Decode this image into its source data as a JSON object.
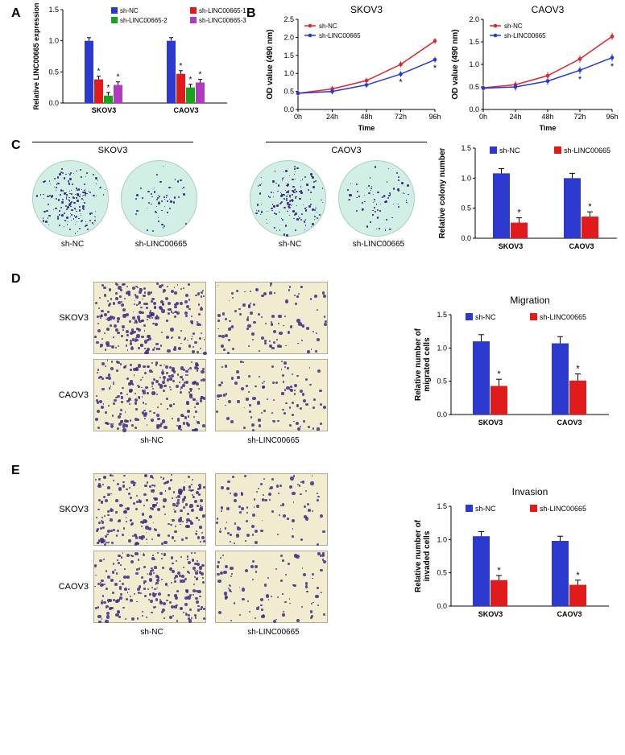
{
  "colors": {
    "blue": "#2b39ce",
    "red": "#e11b1b",
    "green": "#16a41a",
    "magenta": "#b03bc1",
    "line_red": "#e3222d",
    "line_blue": "#2539d6",
    "stain": "#3b2d86",
    "petri_bg": "#d2efe5",
    "micro_bg": "#f1ecd0"
  },
  "panelA": {
    "label": "A",
    "ylabel": "Relative LINC00665 expression",
    "ylim": [
      0,
      1.5
    ],
    "ytick_step": 0.5,
    "groups": [
      "SKOV3",
      "CAOV3"
    ],
    "legend": [
      {
        "key": "sh-NC",
        "color": "#2b39ce"
      },
      {
        "key": "sh-LINC00665-1",
        "color": "#e11b1b"
      },
      {
        "key": "sh-LINC00665-2",
        "color": "#16a41a"
      },
      {
        "key": "sh-LINC00665-3",
        "color": "#b03bc1"
      }
    ],
    "values": {
      "SKOV3": [
        1.0,
        0.38,
        0.12,
        0.29
      ],
      "CAOV3": [
        1.0,
        0.47,
        0.25,
        0.33
      ]
    },
    "err": 0.05
  },
  "panelB": {
    "label": "B",
    "charts": [
      {
        "title": "SKOV3",
        "ylabel": "OD value (490 nm)",
        "xlabel": "Time",
        "ylim": [
          0,
          2.5
        ],
        "yticks": [
          0,
          0.5,
          1.0,
          1.5,
          2.0,
          2.5
        ],
        "x": [
          "0h",
          "24h",
          "48h",
          "72h",
          "96h"
        ],
        "series": [
          {
            "name": "sh-NC",
            "color": "#e3222d",
            "y": [
              0.45,
              0.57,
              0.8,
              1.25,
              1.9
            ]
          },
          {
            "name": "sh-LINC00665",
            "color": "#2539d6",
            "y": [
              0.45,
              0.5,
              0.68,
              0.98,
              1.38
            ]
          }
        ]
      },
      {
        "title": "CAOV3",
        "ylabel": "OD value (490 nm)",
        "xlabel": "Time",
        "ylim": [
          0,
          2.0
        ],
        "yticks": [
          0,
          0.5,
          1.0,
          1.5,
          2.0
        ],
        "x": [
          "0h",
          "24h",
          "48h",
          "72h",
          "96h"
        ],
        "series": [
          {
            "name": "sh-NC",
            "color": "#e3222d",
            "y": [
              0.48,
              0.55,
              0.75,
              1.12,
              1.62
            ]
          },
          {
            "name": "sh-LINC00665",
            "color": "#2539d6",
            "y": [
              0.47,
              0.5,
              0.63,
              0.87,
              1.15
            ]
          }
        ]
      }
    ]
  },
  "panelC": {
    "label": "C",
    "lines": [
      "SKOV3",
      "CAOV3"
    ],
    "cols": [
      "sh-NC",
      "sh-LINC00665",
      "sh-NC",
      "sh-LINC00665"
    ],
    "bar": {
      "ylabel": "Relative colony number",
      "ylim": [
        0,
        1.5
      ],
      "ytick_step": 0.5,
      "groups": [
        "SKOV3",
        "CAOV3"
      ],
      "legend": [
        {
          "key": "sh-NC",
          "color": "#2b39ce"
        },
        {
          "key": "sh-LINC00665",
          "color": "#e11b1b"
        }
      ],
      "values": {
        "SKOV3": [
          1.08,
          0.26
        ],
        "CAOV3": [
          1.0,
          0.36
        ]
      },
      "err": 0.08
    }
  },
  "panelD": {
    "label": "D",
    "rows": [
      "SKOV3",
      "CAOV3"
    ],
    "cols": [
      "sh-NC",
      "sh-LINC00665"
    ],
    "bar": {
      "title": "Migration",
      "ylabel": "Relative number of\nmigrated cells",
      "ylim": [
        0,
        1.5
      ],
      "ytick_step": 0.5,
      "groups": [
        "SKOV3",
        "CAOV3"
      ],
      "legend": [
        {
          "key": "sh-NC",
          "color": "#2b39ce"
        },
        {
          "key": "sh-LINC00665",
          "color": "#e11b1b"
        }
      ],
      "values": {
        "SKOV3": [
          1.1,
          0.43
        ],
        "CAOV3": [
          1.07,
          0.51
        ]
      },
      "err": 0.1
    }
  },
  "panelE": {
    "label": "E",
    "rows": [
      "SKOV3",
      "CAOV3"
    ],
    "cols": [
      "sh-NC",
      "sh-LINC00665"
    ],
    "bar": {
      "title": "Invasion",
      "ylabel": "Relative number of\ninvaded cells",
      "ylim": [
        0,
        1.5
      ],
      "ytick_step": 0.5,
      "groups": [
        "SKOV3",
        "CAOV3"
      ],
      "legend": [
        {
          "key": "sh-NC",
          "color": "#2b39ce"
        },
        {
          "key": "sh-LINC00665",
          "color": "#e11b1b"
        }
      ],
      "values": {
        "SKOV3": [
          1.05,
          0.39
        ],
        "CAOV3": [
          0.98,
          0.32
        ]
      },
      "err": 0.07
    }
  }
}
